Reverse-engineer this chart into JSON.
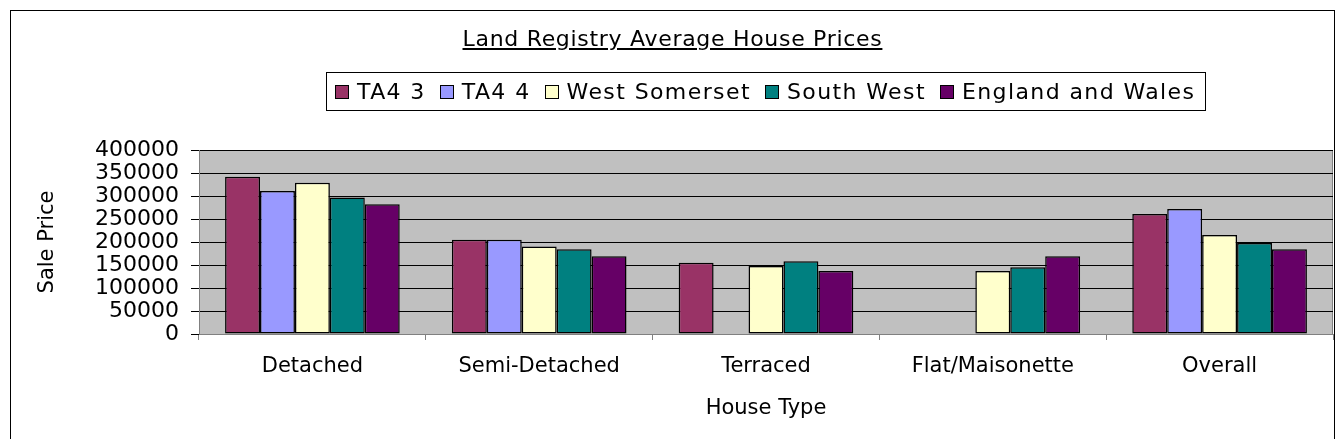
{
  "chart_data": {
    "type": "bar",
    "title": "Land Registry Average House Prices",
    "xlabel": "House Type",
    "ylabel": "Sale Price",
    "categories": [
      "Detached",
      "Semi-Detached",
      "Terraced",
      "Flat/Maisonette",
      "Overall"
    ],
    "series": [
      {
        "name": "TA4 3",
        "color": "#993366",
        "values": [
          342000,
          205000,
          155000,
          null,
          261000
        ]
      },
      {
        "name": "TA4 4",
        "color": "#9999ff",
        "values": [
          311000,
          205000,
          null,
          null,
          272000
        ]
      },
      {
        "name": "West Somerset",
        "color": "#ffffcc",
        "values": [
          329000,
          190000,
          148000,
          137000,
          215000
        ]
      },
      {
        "name": "South West",
        "color": "#008080",
        "values": [
          297000,
          184000,
          158000,
          145000,
          198000
        ]
      },
      {
        "name": "England and Wales",
        "color": "#660066",
        "values": [
          282000,
          169000,
          137000,
          169000,
          184000
        ]
      }
    ],
    "ylim": [
      0,
      400000
    ],
    "yticks": [
      0,
      50000,
      100000,
      150000,
      200000,
      250000,
      300000,
      350000,
      400000
    ],
    "grid": "y",
    "legend": "top"
  }
}
